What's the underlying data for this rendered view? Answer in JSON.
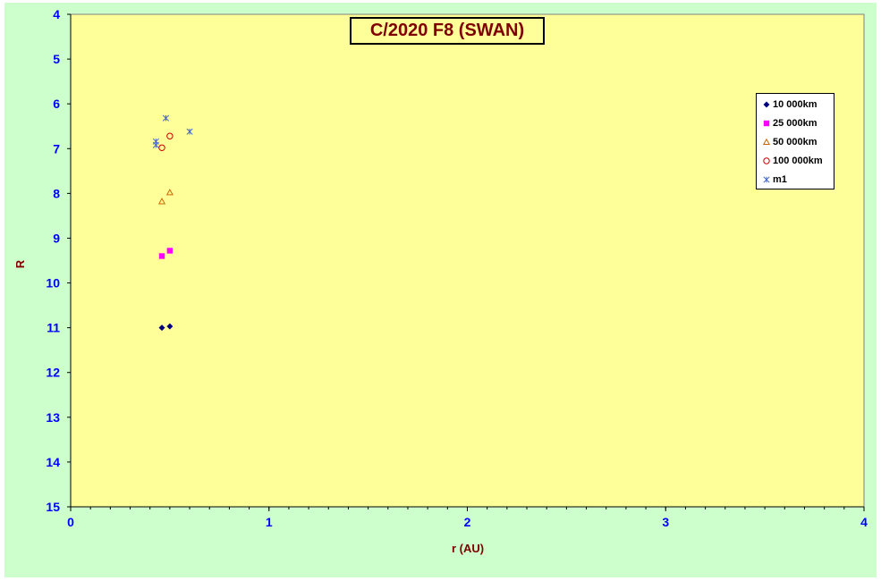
{
  "chart_data": {
    "type": "scatter",
    "title": "C/2020 F8 (SWAN)",
    "xlabel": "r (AU)",
    "ylabel": "R",
    "xlim": [
      0,
      4
    ],
    "ylim": [
      4,
      15
    ],
    "y_inverted": true,
    "x_ticks": [
      "0",
      "1",
      "2",
      "3",
      "4"
    ],
    "y_ticks": [
      "4",
      "5",
      "6",
      "7",
      "8",
      "9",
      "10",
      "11",
      "12",
      "13",
      "14",
      "15"
    ],
    "grid": false,
    "legend_position": "top-right",
    "series": [
      {
        "name": "10 000km",
        "marker": "diamond",
        "color": "#000080",
        "points": [
          [
            0.46,
            11.0
          ],
          [
            0.5,
            10.97
          ]
        ]
      },
      {
        "name": "25 000km",
        "marker": "square",
        "color": "#ff00ff",
        "points": [
          [
            0.46,
            9.4
          ],
          [
            0.5,
            9.28
          ]
        ]
      },
      {
        "name": "50 000km",
        "marker": "triangle",
        "color": "#cc6600",
        "points": [
          [
            0.46,
            8.18
          ],
          [
            0.5,
            7.98
          ]
        ]
      },
      {
        "name": "100 000km",
        "marker": "circle",
        "color": "#cc0000",
        "points": [
          [
            0.46,
            6.98
          ],
          [
            0.5,
            6.72
          ]
        ]
      },
      {
        "name": "m1",
        "marker": "star",
        "color": "#4466cc",
        "points": [
          [
            0.43,
            6.84
          ],
          [
            0.43,
            6.92
          ],
          [
            0.48,
            6.32
          ],
          [
            0.6,
            6.62
          ]
        ]
      }
    ]
  },
  "colors": {
    "page_background": "#ccffcc",
    "plot_background": "#ffff99",
    "title_color": "#800000",
    "axis_label_color": "#800000",
    "tick_label_color": "#0000ff"
  }
}
